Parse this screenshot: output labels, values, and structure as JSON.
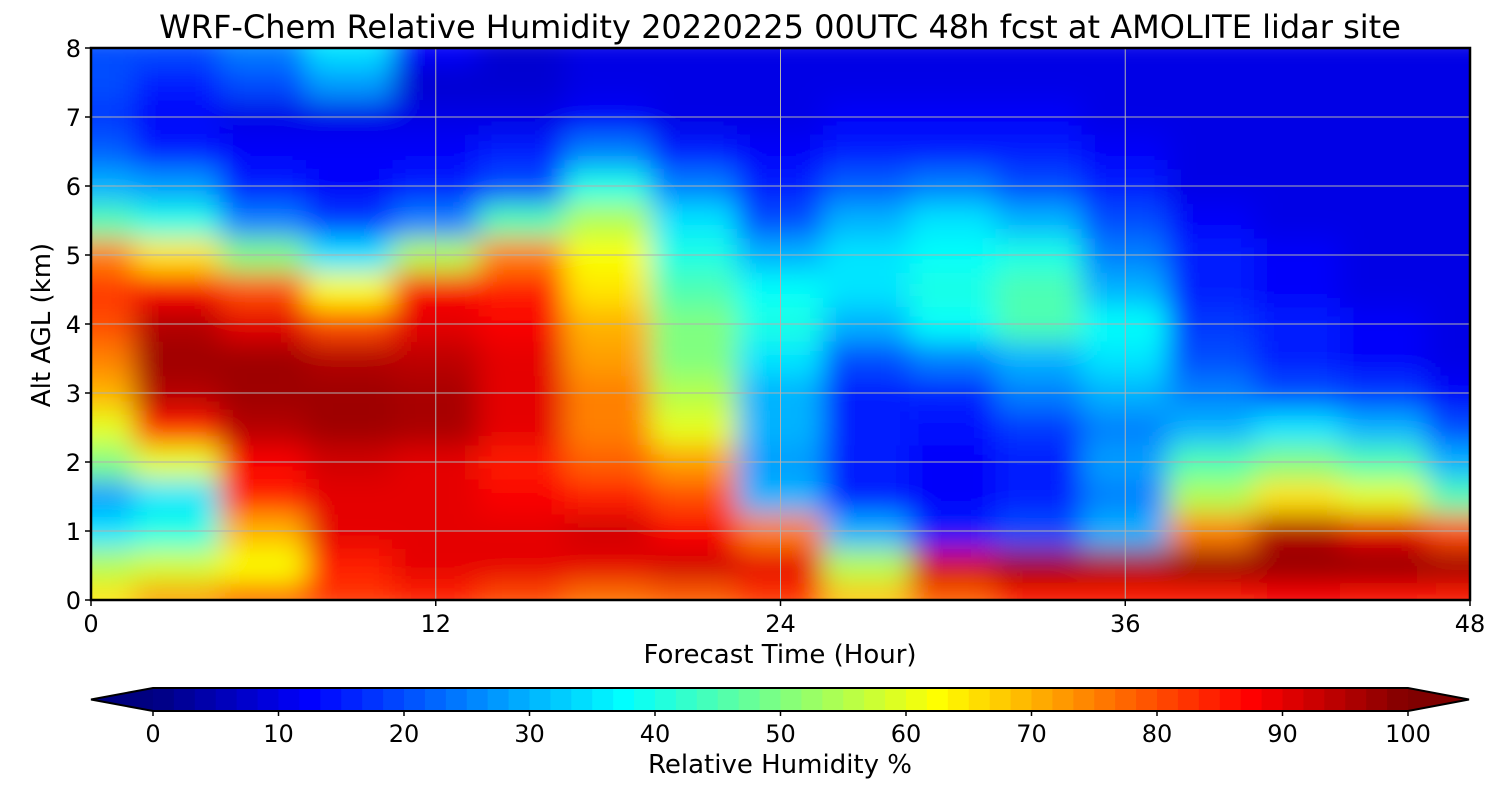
{
  "chart_data": {
    "type": "heatmap",
    "title": "WRF-Chem Relative Humidity 20220225 00UTC 48h fcst at AMOLITE lidar site",
    "xlabel": "Forecast Time (Hour)",
    "ylabel": "Alt AGL (km)",
    "xlim": [
      0,
      48
    ],
    "ylim": [
      0,
      8
    ],
    "x_ticks": [
      "0",
      "12",
      "24",
      "36",
      "48"
    ],
    "y_ticks": [
      "0",
      "1",
      "2",
      "3",
      "4",
      "5",
      "6",
      "7",
      "8"
    ],
    "grid": true,
    "colormap": "jet",
    "colorbar": {
      "label": "Relative Humidity %",
      "range": [
        0,
        100
      ],
      "ticks": [
        "0",
        "10",
        "20",
        "30",
        "40",
        "50",
        "60",
        "70",
        "80",
        "90",
        "100"
      ],
      "extend": "both",
      "placement": "bottom"
    },
    "x": [
      0,
      3,
      6,
      9,
      12,
      15,
      18,
      21,
      24,
      27,
      30,
      33,
      36,
      39,
      42,
      45,
      48
    ],
    "y": [
      0,
      0.5,
      1,
      1.5,
      2,
      2.5,
      3,
      3.5,
      4,
      4.5,
      5,
      5.5,
      6,
      6.5,
      7,
      7.5,
      8
    ],
    "values": [
      [
        65,
        72,
        78,
        82,
        84,
        80,
        76,
        78,
        82,
        68,
        78,
        85,
        85,
        85,
        88,
        86,
        85
      ],
      [
        55,
        58,
        62,
        85,
        90,
        90,
        90,
        92,
        90,
        55,
        92,
        97,
        96,
        98,
        98,
        98,
        97
      ],
      [
        35,
        40,
        70,
        90,
        90,
        90,
        92,
        88,
        75,
        30,
        15,
        20,
        30,
        75,
        95,
        90,
        80
      ],
      [
        28,
        35,
        85,
        90,
        90,
        88,
        85,
        80,
        30,
        15,
        12,
        15,
        25,
        55,
        65,
        60,
        45
      ],
      [
        50,
        60,
        88,
        92,
        90,
        85,
        78,
        72,
        28,
        15,
        12,
        15,
        28,
        45,
        50,
        45,
        30
      ],
      [
        60,
        85,
        95,
        97,
        96,
        90,
        75,
        60,
        30,
        15,
        14,
        18,
        25,
        30,
        35,
        30,
        20
      ],
      [
        70,
        95,
        97,
        97,
        96,
        90,
        75,
        55,
        30,
        15,
        16,
        25,
        30,
        25,
        20,
        18,
        12
      ],
      [
        75,
        97,
        97,
        95,
        94,
        90,
        72,
        50,
        35,
        20,
        25,
        30,
        35,
        20,
        15,
        12,
        10
      ],
      [
        80,
        95,
        90,
        80,
        90,
        88,
        70,
        50,
        40,
        30,
        38,
        45,
        38,
        18,
        15,
        12,
        10
      ],
      [
        82,
        88,
        80,
        62,
        88,
        85,
        65,
        45,
        38,
        35,
        40,
        45,
        30,
        15,
        12,
        10,
        10
      ],
      [
        75,
        65,
        50,
        35,
        55,
        75,
        62,
        40,
        30,
        35,
        38,
        40,
        25,
        15,
        12,
        10,
        10
      ],
      [
        45,
        40,
        25,
        18,
        25,
        45,
        55,
        35,
        20,
        30,
        35,
        30,
        20,
        12,
        10,
        10,
        10
      ],
      [
        30,
        28,
        15,
        12,
        15,
        20,
        40,
        25,
        15,
        22,
        25,
        20,
        15,
        10,
        10,
        10,
        10
      ],
      [
        22,
        15,
        12,
        12,
        12,
        15,
        25,
        15,
        12,
        15,
        15,
        15,
        12,
        10,
        10,
        10,
        10
      ],
      [
        18,
        12,
        10,
        10,
        10,
        10,
        12,
        10,
        10,
        12,
        12,
        12,
        10,
        10,
        10,
        10,
        10
      ],
      [
        20,
        15,
        20,
        28,
        8,
        8,
        10,
        10,
        10,
        10,
        10,
        10,
        10,
        10,
        10,
        10,
        10
      ],
      [
        20,
        20,
        25,
        35,
        12,
        8,
        10,
        10,
        10,
        10,
        10,
        10,
        10,
        10,
        10,
        10,
        10
      ]
    ]
  }
}
